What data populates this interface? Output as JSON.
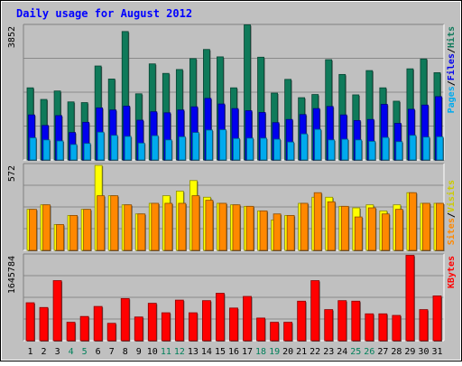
{
  "chart_data": [
    {
      "type": "bar",
      "title": "Daily usage for August 2012",
      "xlabel": "",
      "ylabel": "",
      "categories": [
        "1",
        "2",
        "3",
        "4",
        "5",
        "6",
        "7",
        "8",
        "9",
        "10",
        "11",
        "12",
        "13",
        "14",
        "15",
        "16",
        "17",
        "18",
        "19",
        "20",
        "21",
        "22",
        "23",
        "24",
        "25",
        "26",
        "27",
        "28",
        "29",
        "30",
        "31"
      ],
      "weekend_days": [
        "4",
        "5",
        "11",
        "12",
        "18",
        "19",
        "25",
        "26"
      ],
      "ylim": [
        0,
        3852
      ],
      "y_tick_label": "3852",
      "grid": true,
      "series": [
        {
          "name": "Hits",
          "color": "#0f7a5a",
          "values": [
            2050,
            1720,
            1960,
            1650,
            1630,
            2670,
            2300,
            3650,
            1880,
            2730,
            2460,
            2570,
            2880,
            3140,
            2930,
            2050,
            3840,
            2920,
            1900,
            2290,
            1770,
            1860,
            2850,
            2430,
            1850,
            2540,
            2050,
            1670,
            2590,
            2870,
            2480
          ]
        },
        {
          "name": "Files",
          "color": "#0000ee",
          "values": [
            1280,
            980,
            1260,
            780,
            1070,
            1480,
            1420,
            1530,
            1130,
            1370,
            1340,
            1420,
            1510,
            1750,
            1590,
            1460,
            1400,
            1350,
            1060,
            1150,
            1290,
            1460,
            1520,
            1280,
            1120,
            1150,
            1580,
            1040,
            1440,
            1560,
            1800
          ]
        },
        {
          "name": "Pages",
          "color": "#00aaee",
          "values": [
            630,
            570,
            540,
            440,
            470,
            790,
            700,
            670,
            480,
            690,
            570,
            660,
            780,
            850,
            860,
            610,
            620,
            620,
            590,
            510,
            740,
            870,
            570,
            590,
            570,
            530,
            640,
            520,
            700,
            650,
            660
          ]
        }
      ],
      "legend": [
        "Pages",
        "Files",
        "Hits"
      ],
      "legend_placement": "right"
    },
    {
      "type": "bar",
      "title": "",
      "xlabel": "",
      "ylabel": "",
      "categories": [
        "1",
        "2",
        "3",
        "4",
        "5",
        "6",
        "7",
        "8",
        "9",
        "10",
        "11",
        "12",
        "13",
        "14",
        "15",
        "16",
        "17",
        "18",
        "19",
        "20",
        "21",
        "22",
        "23",
        "24",
        "25",
        "26",
        "27",
        "28",
        "29",
        "30",
        "31"
      ],
      "ylim": [
        0,
        572
      ],
      "y_tick_label": "572",
      "grid": true,
      "series": [
        {
          "name": "Visits",
          "color": "#ffff00",
          "values": [
            270,
            300,
            170,
            230,
            270,
            560,
            360,
            300,
            240,
            310,
            360,
            390,
            460,
            350,
            310,
            300,
            290,
            260,
            200,
            230,
            310,
            350,
            350,
            290,
            280,
            300,
            260,
            300,
            380,
            310,
            310
          ]
        },
        {
          "name": "Sites",
          "color": "#ff8800",
          "values": [
            270,
            300,
            170,
            230,
            270,
            360,
            360,
            300,
            240,
            310,
            310,
            310,
            360,
            330,
            310,
            300,
            290,
            260,
            240,
            230,
            310,
            380,
            320,
            290,
            220,
            280,
            240,
            270,
            380,
            310,
            310
          ]
        }
      ],
      "legend": [
        "Sites",
        "Visits"
      ],
      "legend_placement": "right"
    },
    {
      "type": "bar",
      "title": "",
      "xlabel": "",
      "ylabel": "",
      "categories": [
        "1",
        "2",
        "3",
        "4",
        "5",
        "6",
        "7",
        "8",
        "9",
        "10",
        "11",
        "12",
        "13",
        "14",
        "15",
        "16",
        "17",
        "18",
        "19",
        "20",
        "21",
        "22",
        "23",
        "24",
        "25",
        "26",
        "27",
        "28",
        "29",
        "30",
        "31"
      ],
      "ylim": [
        0,
        1645784
      ],
      "y_tick_label": "1645784",
      "grid": true,
      "series": [
        {
          "name": "KBytes",
          "color": "#ff0000",
          "values": [
            720000,
            630000,
            1140000,
            350000,
            460000,
            650000,
            330000,
            800000,
            450000,
            710000,
            530000,
            770000,
            530000,
            760000,
            900000,
            620000,
            840000,
            430000,
            350000,
            350000,
            750000,
            1140000,
            590000,
            760000,
            750000,
            510000,
            510000,
            480000,
            1620000,
            590000,
            850000
          ]
        }
      ],
      "legend": [
        "KBytes"
      ],
      "legend_placement": "right"
    }
  ]
}
